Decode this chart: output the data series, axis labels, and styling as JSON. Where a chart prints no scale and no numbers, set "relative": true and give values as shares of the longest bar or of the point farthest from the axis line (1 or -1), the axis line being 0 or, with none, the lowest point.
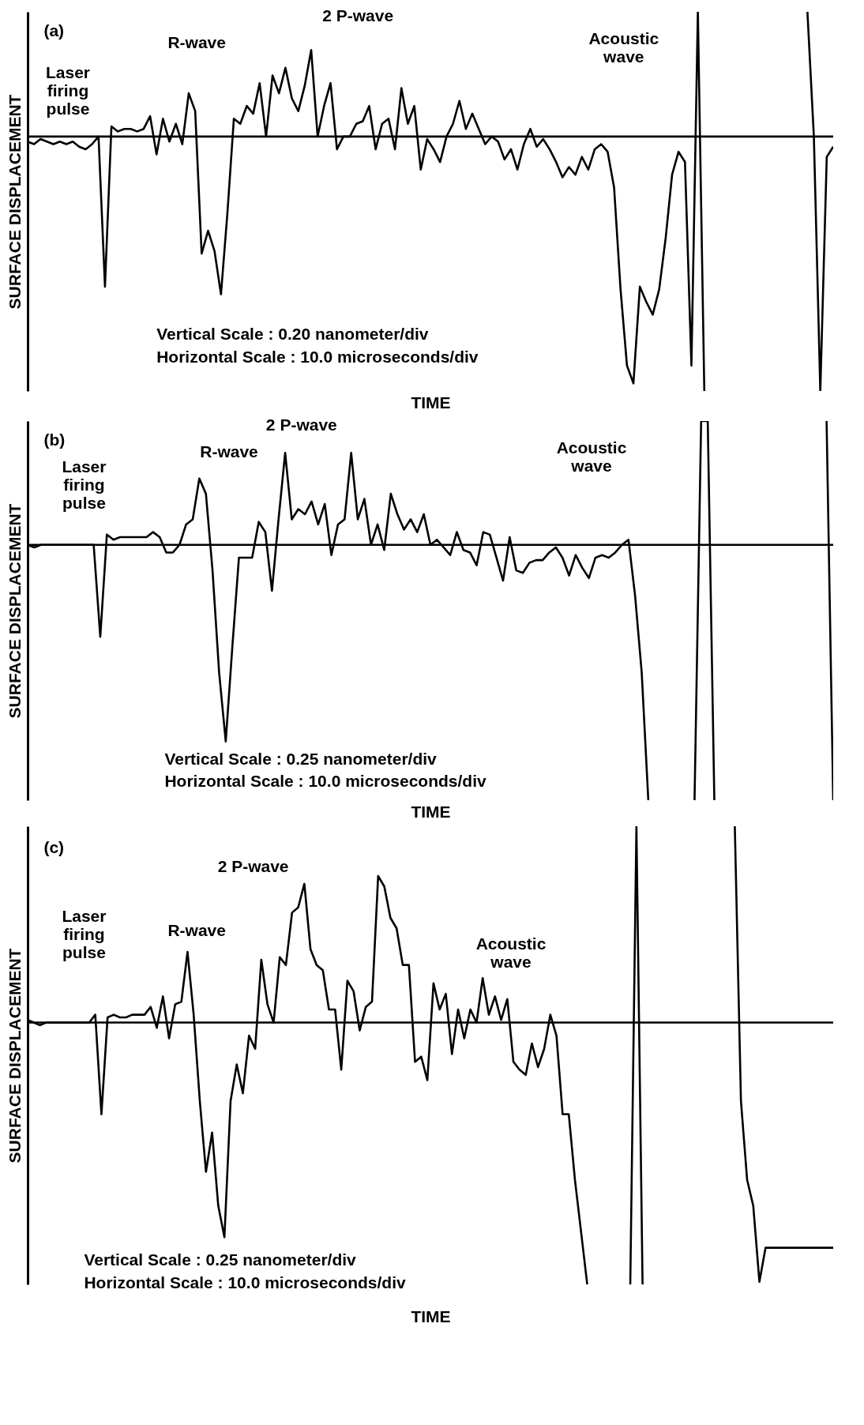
{
  "chart_data": [
    {
      "type": "line",
      "relative": true,
      "color": "#000000",
      "ylabel": "SURFACE DISPLACEMENT",
      "xlabel": "TIME",
      "annotations": [
        "(a)",
        "Laser firing pulse",
        "R-wave",
        "2 P-wave",
        "Acoustic wave",
        "Vertical Scale : 0.20  nanometer/div",
        "Horizontal Scale : 10.0  microseconds/div"
      ],
      "ref_lines": [
        {
          "axis": "y",
          "value": 0
        }
      ],
      "categories": [
        null,
        null,
        null,
        null,
        null,
        null,
        null,
        null,
        null,
        null,
        null,
        null,
        null,
        null,
        null,
        null,
        null,
        null,
        null,
        null,
        null,
        null,
        null,
        null,
        null,
        null,
        null,
        null,
        null,
        null,
        null,
        null,
        null,
        null,
        null,
        null,
        null,
        null,
        null,
        null,
        null,
        null,
        null,
        null,
        null,
        null,
        null,
        null,
        null,
        null,
        null,
        null,
        null,
        null,
        null,
        null,
        null,
        null,
        null,
        null,
        null,
        null,
        null,
        null,
        null,
        null,
        null,
        null,
        null,
        null,
        null,
        null,
        null,
        null,
        null,
        null,
        null,
        null,
        null,
        null,
        null,
        null,
        null,
        null,
        null,
        null,
        null,
        null,
        null,
        null,
        null,
        null,
        null,
        null,
        null,
        null,
        null,
        null,
        null,
        null,
        null,
        null,
        null,
        null,
        null,
        null,
        null,
        null,
        null,
        null,
        null,
        null,
        null,
        null,
        null,
        null,
        null,
        null,
        null,
        null,
        null,
        null,
        null,
        null,
        null,
        null
      ],
      "values": [
        -0.02,
        -0.03,
        -0.01,
        -0.02,
        -0.03,
        -0.02,
        -0.03,
        -0.02,
        -0.04,
        -0.05,
        -0.03,
        0,
        -0.59,
        0.04,
        0.02,
        0.03,
        0.03,
        0.02,
        0.03,
        0.08,
        -0.07,
        0.07,
        -0.02,
        0.05,
        -0.03,
        0.17,
        0.1,
        -0.46,
        -0.37,
        -0.45,
        -0.62,
        -0.3,
        0.07,
        0.05,
        0.12,
        0.09,
        0.21,
        0,
        0.24,
        0.17,
        0.27,
        0.15,
        0.1,
        0.2,
        0.34,
        0,
        0.12,
        0.21,
        -0.05,
        0,
        0,
        0.05,
        0.06,
        0.12,
        -0.05,
        0.05,
        0.07,
        -0.05,
        0.19,
        0.05,
        0.12,
        -0.13,
        -0.01,
        -0.05,
        -0.1,
        0,
        0.05,
        0.14,
        0.03,
        0.09,
        0.03,
        -0.03,
        0,
        -0.02,
        -0.09,
        -0.05,
        -0.13,
        -0.03,
        0.03,
        -0.04,
        -0.01,
        -0.05,
        -0.1,
        -0.16,
        -0.12,
        -0.15,
        -0.08,
        -0.13,
        -0.05,
        -0.03,
        -0.06,
        -0.2,
        -0.6,
        -0.9,
        -0.97,
        -0.59,
        -0.65,
        -0.7,
        -0.6,
        -0.4,
        -0.15,
        -0.06,
        -0.1,
        -0.9,
        0.49,
        -1,
        null,
        null,
        null,
        null,
        null,
        null,
        null,
        null,
        null,
        null,
        null,
        null,
        null,
        null,
        null,
        0.49,
        0,
        -1,
        -0.08,
        -0.04
      ]
    },
    {
      "type": "line",
      "relative": true,
      "color": "#000000",
      "ylabel": "SURFACE DISPLACEMENT",
      "xlabel": "TIME",
      "annotations": [
        "(b)",
        "Laser firing pulse",
        "R-wave",
        "2 P-wave",
        "Acoustic wave",
        "Vertical Scale : 0.25  nanometer/div",
        "Horizontal Scale : 10.0  microseconds/div"
      ],
      "ref_lines": [
        {
          "axis": "y",
          "value": 0
        }
      ],
      "categories": [
        null,
        null,
        null,
        null,
        null,
        null,
        null,
        null,
        null,
        null,
        null,
        null,
        null,
        null,
        null,
        null,
        null,
        null,
        null,
        null,
        null,
        null,
        null,
        null,
        null,
        null,
        null,
        null,
        null,
        null,
        null,
        null,
        null,
        null,
        null,
        null,
        null,
        null,
        null,
        null,
        null,
        null,
        null,
        null,
        null,
        null,
        null,
        null,
        null,
        null,
        null,
        null,
        null,
        null,
        null,
        null,
        null,
        null,
        null,
        null,
        null,
        null,
        null,
        null,
        null,
        null,
        null,
        null,
        null,
        null,
        null,
        null,
        null,
        null,
        null,
        null,
        null,
        null,
        null,
        null,
        null,
        null,
        null,
        null,
        null,
        null,
        null,
        null,
        null,
        null,
        null,
        null,
        null,
        null,
        null,
        null,
        null,
        null,
        null,
        null,
        null,
        null,
        null,
        null,
        null,
        null,
        null,
        null,
        null,
        null,
        null,
        null,
        null,
        null,
        null,
        null,
        null,
        null,
        null,
        null,
        null,
        null,
        null
      ],
      "values": [
        0,
        -0.01,
        0,
        0,
        0,
        0,
        0,
        0,
        0,
        0,
        0,
        -0.36,
        0.04,
        0.02,
        0.03,
        0.03,
        0.03,
        0.03,
        0.03,
        0.05,
        0.03,
        -0.03,
        -0.03,
        0,
        0.08,
        0.1,
        0.26,
        0.2,
        -0.1,
        -0.5,
        -0.77,
        -0.4,
        -0.05,
        -0.05,
        -0.05,
        0.09,
        0.05,
        -0.18,
        0.1,
        0.36,
        0.1,
        0.14,
        0.12,
        0.17,
        0.08,
        0.16,
        -0.04,
        0.08,
        0.1,
        0.36,
        0.1,
        0.18,
        0,
        0.08,
        -0.02,
        0.2,
        0.12,
        0.06,
        0.1,
        0.05,
        0.12,
        0,
        0.02,
        -0.01,
        -0.04,
        0.05,
        -0.02,
        -0.03,
        -0.08,
        0.05,
        0.04,
        -0.05,
        -0.14,
        0.03,
        -0.1,
        -0.11,
        -0.07,
        -0.06,
        -0.06,
        -0.03,
        -0.01,
        -0.05,
        -0.12,
        -0.04,
        -0.09,
        -0.13,
        -0.05,
        -0.04,
        -0.05,
        -0.03,
        0,
        0.02,
        -0.2,
        -0.5,
        -1,
        null,
        null,
        null,
        null,
        null,
        null,
        -1,
        0.485,
        0.485,
        -1,
        null,
        null,
        null,
        null,
        null,
        null,
        null,
        null,
        null,
        null,
        null,
        null,
        null,
        null,
        null,
        null,
        0.485,
        -1
      ]
    },
    {
      "type": "line",
      "relative": true,
      "color": "#000000",
      "ylabel": "SURFACE DISPLACEMENT",
      "xlabel": "TIME",
      "annotations": [
        "(c)",
        "Laser firing pulse",
        "R-wave",
        "2 P-wave",
        "Acoustic wave",
        "Vertical Scale : 0.25  nanometer/div",
        "Horizontal Scale : 10.0  microseconds/div"
      ],
      "ref_lines": [
        {
          "axis": "y",
          "value": 0
        }
      ],
      "categories": [
        null,
        null,
        null,
        null,
        null,
        null,
        null,
        null,
        null,
        null,
        null,
        null,
        null,
        null,
        null,
        null,
        null,
        null,
        null,
        null,
        null,
        null,
        null,
        null,
        null,
        null,
        null,
        null,
        null,
        null,
        null,
        null,
        null,
        null,
        null,
        null,
        null,
        null,
        null,
        null,
        null,
        null,
        null,
        null,
        null,
        null,
        null,
        null,
        null,
        null,
        null,
        null,
        null,
        null,
        null,
        null,
        null,
        null,
        null,
        null,
        null,
        null,
        null,
        null,
        null,
        null,
        null,
        null,
        null,
        null,
        null,
        null,
        null,
        null,
        null,
        null,
        null,
        null,
        null,
        null,
        null,
        null,
        null,
        null,
        null,
        null,
        null,
        null,
        null,
        null,
        null,
        null,
        null,
        null,
        null,
        null,
        null,
        null,
        null,
        null,
        null,
        null,
        null,
        null,
        null,
        null,
        null,
        null,
        null,
        null,
        null,
        null,
        null,
        null,
        null,
        null,
        null,
        null,
        null,
        null,
        null,
        null,
        null,
        null,
        null,
        null,
        null,
        null,
        null,
        null,
        null,
        null
      ],
      "values": [
        0.01,
        0,
        -0.01,
        0,
        0,
        0,
        0,
        0,
        0,
        0,
        0,
        0.03,
        -0.35,
        0.02,
        0.03,
        0.02,
        0.02,
        0.03,
        0.03,
        0.03,
        0.06,
        -0.02,
        0.1,
        -0.06,
        0.07,
        0.08,
        0.27,
        0.03,
        -0.3,
        -0.57,
        -0.42,
        -0.7,
        -0.82,
        -0.3,
        -0.16,
        -0.27,
        -0.05,
        -0.1,
        0.24,
        0.07,
        0,
        0.25,
        0.22,
        0.42,
        0.44,
        0.53,
        0.28,
        0.22,
        0.2,
        0.05,
        0.05,
        -0.18,
        0.16,
        0.12,
        -0.03,
        0.06,
        0.08,
        0.56,
        0.52,
        0.4,
        0.36,
        0.22,
        0.22,
        -0.15,
        -0.13,
        -0.22,
        0.15,
        0.05,
        0.11,
        -0.12,
        0.05,
        -0.06,
        0.05,
        0,
        0.17,
        0.03,
        0.1,
        0.01,
        0.09,
        -0.15,
        -0.18,
        -0.2,
        -0.08,
        -0.17,
        -0.1,
        0.03,
        -0.05,
        -0.35,
        -0.35,
        -0.6,
        -0.8,
        -1,
        null,
        null,
        null,
        null,
        null,
        null,
        -1,
        0.75,
        -1,
        null,
        null,
        null,
        null,
        null,
        null,
        null,
        null,
        null,
        null,
        null,
        null,
        null,
        null,
        0.75,
        -0.3,
        -0.6,
        -0.7,
        -0.99,
        -0.86,
        -0.86,
        -0.86,
        -0.86,
        -0.86,
        -0.86,
        -0.86,
        -0.86,
        -0.86,
        -0.86,
        -0.86,
        -0.86
      ]
    }
  ]
}
